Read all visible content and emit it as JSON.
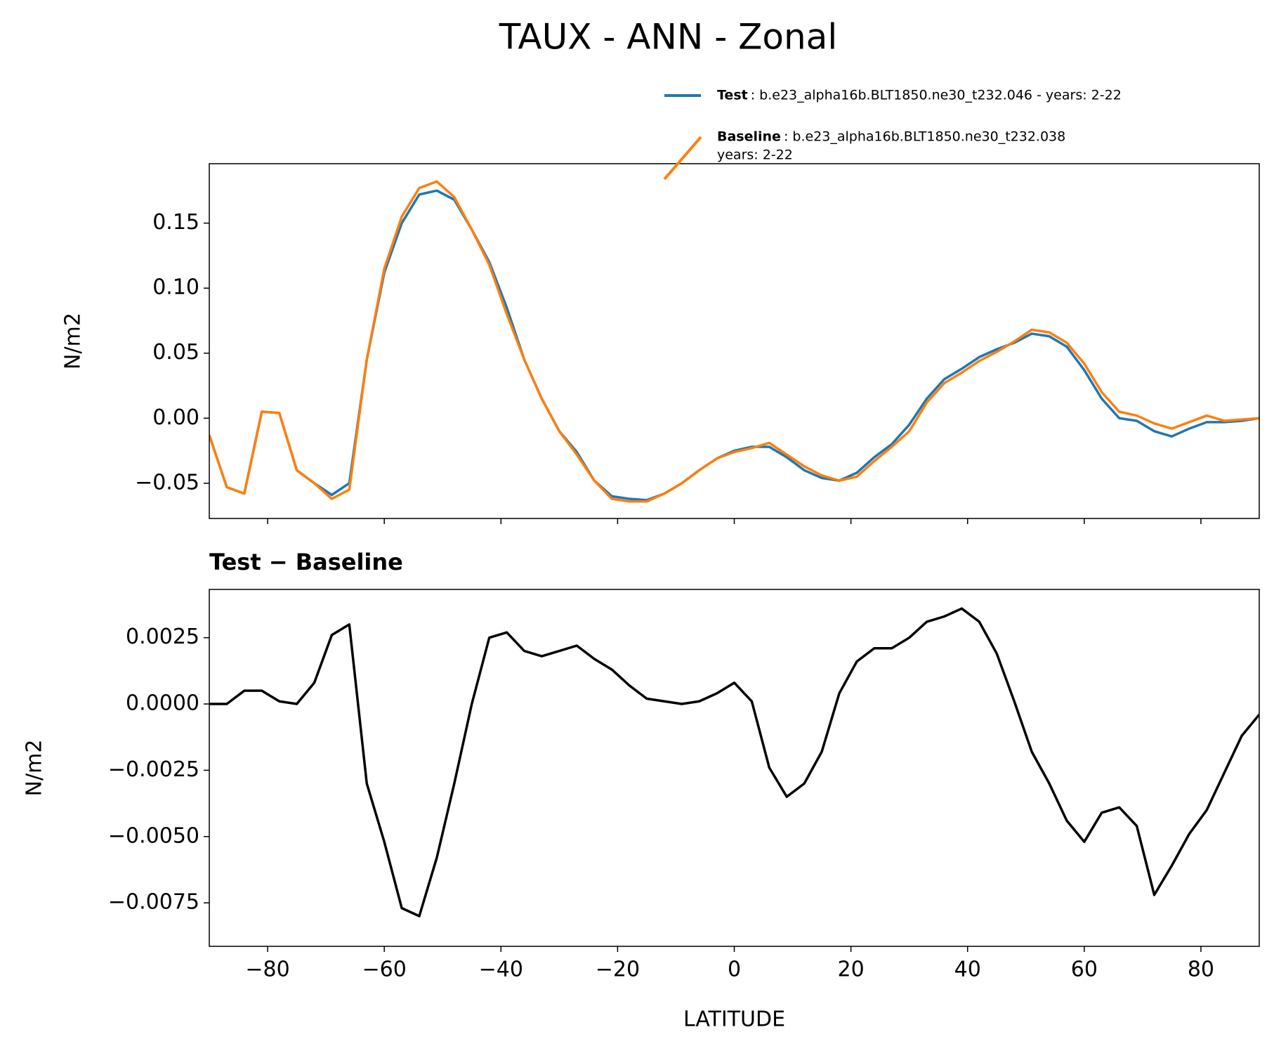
{
  "chart_data": [
    {
      "type": "line",
      "title": "TAUX - ANN - Zonal",
      "ylabel": "N/m2",
      "x": [
        -90,
        -87,
        -84,
        -81,
        -78,
        -75,
        -72,
        -69,
        -66,
        -63,
        -60,
        -57,
        -54,
        -51,
        -48,
        -45,
        -42,
        -39,
        -36,
        -33,
        -30,
        -27,
        -24,
        -21,
        -18,
        -15,
        -12,
        -9,
        -6,
        -3,
        0,
        3,
        6,
        9,
        12,
        15,
        18,
        21,
        24,
        27,
        30,
        33,
        36,
        39,
        42,
        45,
        48,
        51,
        54,
        57,
        60,
        63,
        66,
        69,
        72,
        75,
        78,
        81,
        84,
        87,
        90
      ],
      "series": [
        {
          "name": "Test",
          "description": [
            ": b.e23_alpha16b.BLT1850.ne30_t232.046 - years: 2-22"
          ],
          "color": "#1f77b4",
          "values": [
            -0.013,
            -0.053,
            -0.058,
            0.005,
            0.004,
            -0.04,
            -0.05,
            -0.059,
            -0.05,
            0.045,
            0.112,
            0.15,
            0.172,
            0.175,
            0.168,
            0.145,
            0.12,
            0.085,
            0.045,
            0.015,
            -0.01,
            -0.026,
            -0.048,
            -0.06,
            -0.062,
            -0.063,
            -0.058,
            -0.05,
            -0.04,
            -0.031,
            -0.025,
            -0.022,
            -0.022,
            -0.03,
            -0.04,
            -0.046,
            -0.048,
            -0.042,
            -0.03,
            -0.02,
            -0.005,
            0.015,
            0.03,
            0.038,
            0.047,
            0.053,
            0.058,
            0.065,
            0.063,
            0.055,
            0.037,
            0.015,
            0.0,
            -0.002,
            -0.01,
            -0.014,
            -0.008,
            -0.003,
            -0.003,
            -0.002,
            0.0
          ]
        },
        {
          "name": "Baseline",
          "description": [
            ": b.e23_alpha16b.BLT1850.ne30_t232.038",
            "years: 2-22"
          ],
          "color": "#ff7f0e",
          "values": [
            -0.013,
            -0.053,
            -0.058,
            0.005,
            0.004,
            -0.04,
            -0.05,
            -0.062,
            -0.055,
            0.045,
            0.115,
            0.155,
            0.177,
            0.182,
            0.17,
            0.145,
            0.118,
            0.08,
            0.045,
            0.015,
            -0.01,
            -0.028,
            -0.048,
            -0.062,
            -0.064,
            -0.064,
            -0.058,
            -0.05,
            -0.04,
            -0.031,
            -0.026,
            -0.023,
            -0.019,
            -0.028,
            -0.037,
            -0.044,
            -0.048,
            -0.045,
            -0.033,
            -0.022,
            -0.01,
            0.012,
            0.027,
            0.035,
            0.044,
            0.051,
            0.059,
            0.068,
            0.066,
            0.058,
            0.042,
            0.02,
            0.005,
            0.002,
            -0.004,
            -0.008,
            -0.003,
            0.002,
            -0.002,
            -0.001,
            0.0
          ]
        }
      ],
      "xlim": [
        -90,
        90
      ],
      "xticks": [
        -80,
        -60,
        -40,
        -20,
        0,
        20,
        40,
        60,
        80
      ],
      "ylim": [
        -0.0771,
        0.1957
      ],
      "yticks": [
        {
          "value": -0.05,
          "label": "−0.05"
        },
        {
          "value": 0,
          "label": "0.00"
        },
        {
          "value": 0.05,
          "label": "0.05"
        },
        {
          "value": 0.1,
          "label": "0.10"
        },
        {
          "value": 0.15,
          "label": "0.15"
        }
      ]
    },
    {
      "type": "line",
      "title": "Test − Baseline",
      "xlabel": "LATITUDE",
      "ylabel": "N/m2",
      "x": [
        -90,
        -87,
        -84,
        -81,
        -78,
        -75,
        -72,
        -69,
        -66,
        -63,
        -60,
        -57,
        -54,
        -51,
        -48,
        -45,
        -42,
        -39,
        -36,
        -33,
        -30,
        -27,
        -24,
        -21,
        -18,
        -15,
        -12,
        -9,
        -6,
        -3,
        0,
        3,
        6,
        9,
        12,
        15,
        18,
        21,
        24,
        27,
        30,
        33,
        36,
        39,
        42,
        45,
        48,
        51,
        54,
        57,
        60,
        63,
        66,
        69,
        72,
        75,
        78,
        81,
        84,
        87,
        90
      ],
      "series": [
        {
          "color": "#000000",
          "values": [
            0.0,
            0.0,
            0.0005,
            0.0005,
            0.0001,
            0.0,
            0.0008,
            0.0026,
            0.003,
            -0.003,
            -0.0052,
            -0.0077,
            -0.008,
            -0.0058,
            -0.003,
            0.0,
            0.0025,
            0.0027,
            0.002,
            0.0018,
            0.002,
            0.0022,
            0.0017,
            0.0013,
            0.0007,
            0.0002,
            0.0001,
            0.0,
            0.0001,
            0.0004,
            0.0008,
            0.0001,
            -0.0024,
            -0.0035,
            -0.003,
            -0.0018,
            0.0004,
            0.0016,
            0.0021,
            0.0021,
            0.0025,
            0.0031,
            0.0033,
            0.0036,
            0.0031,
            0.0019,
            0.0001,
            -0.0018,
            -0.003,
            -0.0044,
            -0.0052,
            -0.0041,
            -0.0039,
            -0.0046,
            -0.0072,
            -0.0061,
            -0.0049,
            -0.004,
            -0.0026,
            -0.0012,
            -0.0004
          ]
        }
      ],
      "xlim": [
        -90,
        90
      ],
      "xticks": [
        {
          "value": -80,
          "label": "−80"
        },
        {
          "value": -60,
          "label": "−60"
        },
        {
          "value": -40,
          "label": "−40"
        },
        {
          "value": -20,
          "label": "−20"
        },
        0,
        20,
        40,
        60,
        80
      ],
      "ylim": [
        -0.00914,
        0.00432
      ],
      "yticks": [
        {
          "value": -0.0075,
          "label": "−0.0075"
        },
        {
          "value": -0.005,
          "label": "−0.0050"
        },
        {
          "value": -0.0025,
          "label": "−0.0025"
        },
        {
          "value": 0,
          "label": "0.0000"
        },
        {
          "value": 0.0025,
          "label": "0.0025"
        }
      ]
    }
  ]
}
